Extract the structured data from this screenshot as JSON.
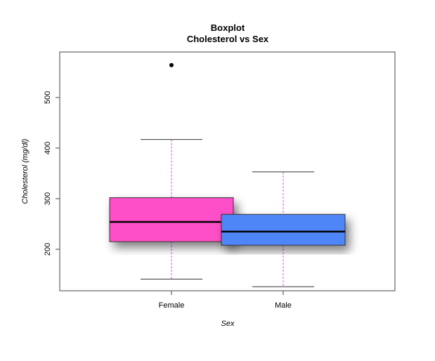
{
  "chart_data": {
    "type": "boxplot",
    "title": "Boxplot",
    "subtitle": "Cholesterol vs Sex",
    "xlabel": "Sex",
    "ylabel": "Cholesterol (mg/dl)",
    "ylim": [
      118,
      590
    ],
    "yticks": [
      200,
      300,
      400,
      500
    ],
    "categories": [
      "Female",
      "Male"
    ],
    "boxes": [
      {
        "category": "Female",
        "whisker_low": 141,
        "q1": 215,
        "median": 254,
        "q3": 302,
        "whisker_high": 417,
        "outliers": [
          564
        ],
        "color": "#ff4fc8"
      },
      {
        "category": "Male",
        "whisker_low": 126,
        "q1": 208,
        "median": 235,
        "q3": 269,
        "whisker_high": 353,
        "outliers": [],
        "color": "#4f86f7"
      }
    ],
    "whisker_color": "#e066ff",
    "grid": false,
    "legend": "none"
  }
}
